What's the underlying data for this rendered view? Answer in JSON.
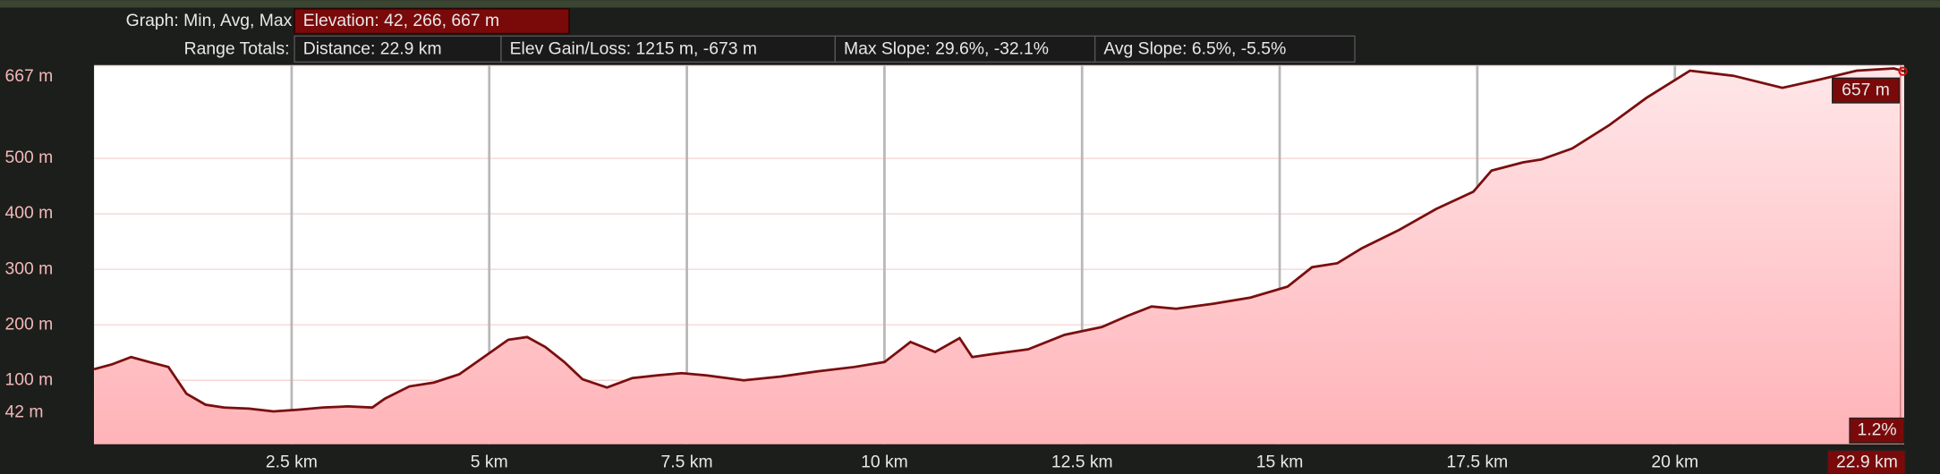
{
  "header": {
    "graph_label": "Graph: Min, Avg, Max",
    "elevation": "Elevation: 42, 266, 667 m",
    "range_label": "Range Totals:",
    "totals": [
      "Distance: 22.9 km",
      "Elev Gain/Loss: 1215 m, -673 m",
      "Max Slope: 29.6%, -32.1%",
      "Avg Slope: 6.5%, -5.5%"
    ]
  },
  "chart_data": {
    "type": "area",
    "color": "#7a0e0e",
    "x": [
      0,
      0.23,
      0.47,
      0.7,
      0.94,
      1.17,
      1.41,
      1.64,
      1.96,
      2.27,
      2.58,
      2.9,
      3.21,
      3.52,
      3.68,
      3.99,
      4.3,
      4.62,
      4.93,
      5.24,
      5.48,
      5.71,
      5.95,
      6.18,
      6.49,
      6.81,
      7.12,
      7.43,
      7.75,
      8.22,
      8.69,
      9.15,
      9.62,
      10.0,
      10.33,
      10.64,
      10.95,
      11.11,
      11.35,
      11.82,
      12.28,
      12.75,
      13.07,
      13.38,
      13.69,
      14.16,
      14.63,
      15.1,
      15.41,
      15.73,
      16.04,
      16.51,
      16.98,
      17.45,
      17.68,
      18.08,
      18.31,
      18.7,
      19.17,
      19.64,
      20.19,
      20.74,
      21.36,
      21.83,
      22.3,
      22.77,
      22.9
    ],
    "values": [
      120,
      129,
      142,
      133,
      124,
      76,
      56,
      51,
      49,
      44,
      47,
      51,
      53,
      51,
      67,
      89,
      96,
      111,
      142,
      173,
      178,
      160,
      133,
      102,
      87,
      104,
      109,
      113,
      109,
      100,
      107,
      116,
      124,
      133,
      169,
      151,
      176,
      142,
      147,
      156,
      182,
      196,
      216,
      233,
      229,
      238,
      249,
      269,
      304,
      311,
      338,
      371,
      409,
      440,
      478,
      493,
      498,
      518,
      560,
      609,
      658,
      649,
      627,
      642,
      658,
      662,
      657
    ],
    "xlim": [
      0,
      22.9
    ],
    "ylim": [
      -15,
      667
    ],
    "xticks": [
      {
        "value": 2.5,
        "label": "2.5 km"
      },
      {
        "value": 5,
        "label": "5 km"
      },
      {
        "value": 7.5,
        "label": "7.5 km"
      },
      {
        "value": 10,
        "label": "10 km"
      },
      {
        "value": 12.5,
        "label": "12.5 km"
      },
      {
        "value": 15,
        "label": "15 km"
      },
      {
        "value": 17.5,
        "label": "17.5 km"
      },
      {
        "value": 20,
        "label": "20 km"
      },
      {
        "value": 22.9,
        "label": "22.9 km"
      }
    ],
    "yticks": [
      {
        "value": 42,
        "label": "42 m"
      },
      {
        "value": 100,
        "label": "100 m"
      },
      {
        "value": 200,
        "label": "200 m"
      },
      {
        "value": 300,
        "label": "300 m"
      },
      {
        "value": 400,
        "label": "400 m"
      },
      {
        "value": 500,
        "label": "500 m"
      },
      {
        "value": 667,
        "label": "667 m"
      }
    ],
    "grid": true,
    "cursor_elevation": "657 m",
    "cursor_slope": "1.2%"
  }
}
